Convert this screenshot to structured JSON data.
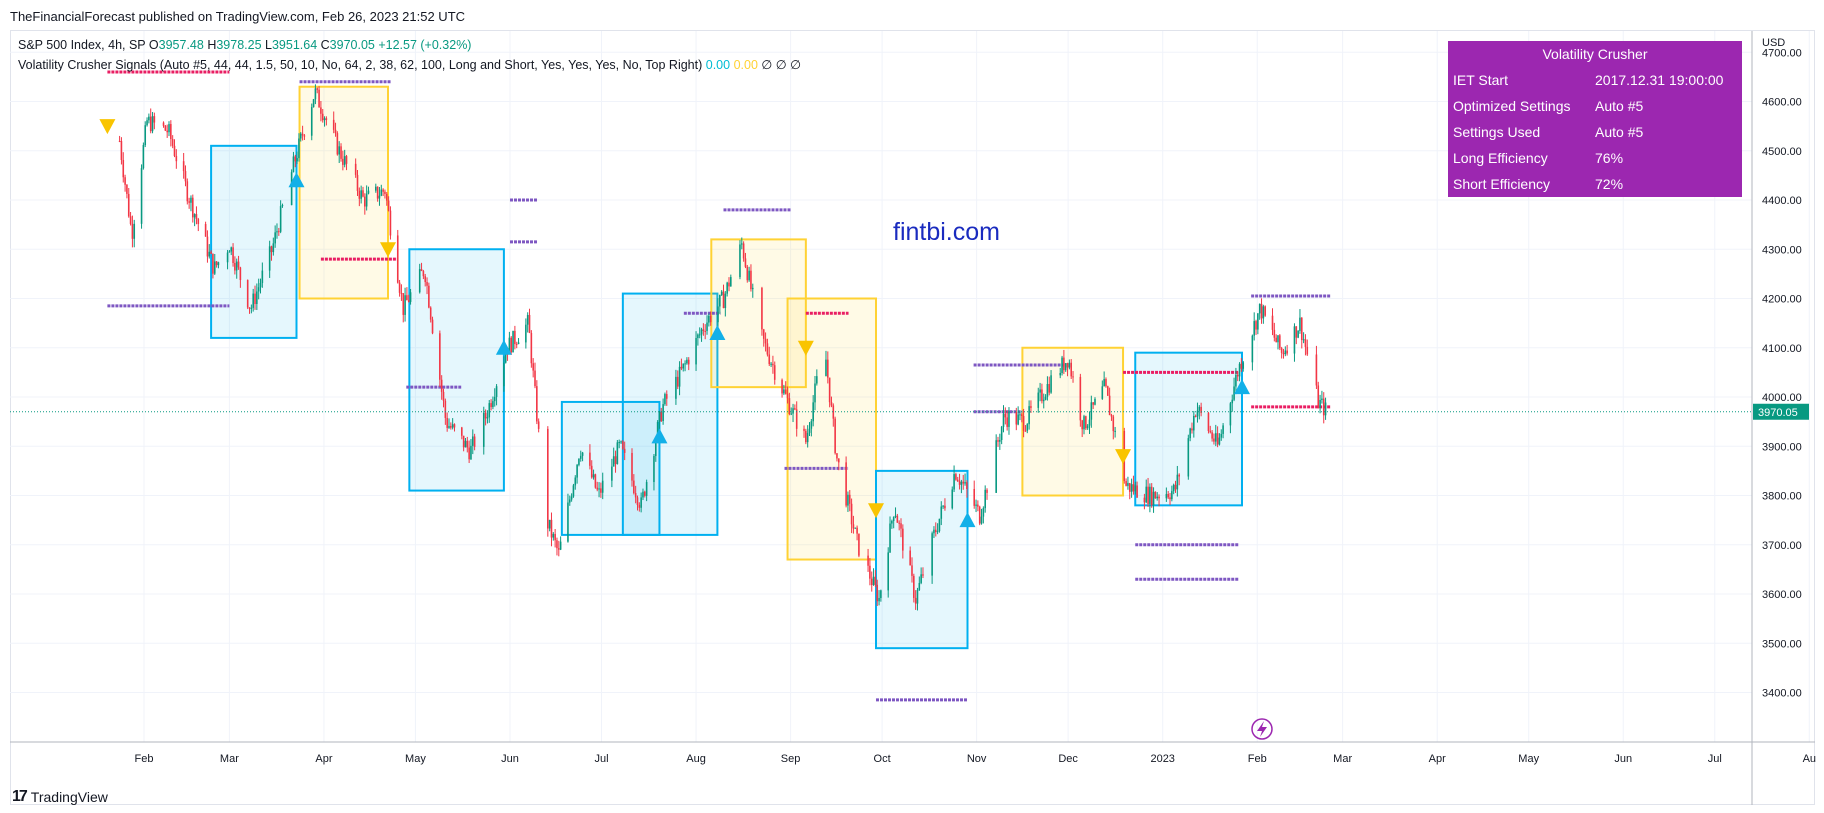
{
  "header": {
    "publisher_line": "TheFinancialForecast published on TradingView.com, Feb 26, 2023 21:52 UTC"
  },
  "legend": {
    "symbol": "S&P 500 Index, 4h, SP",
    "o_label": "O",
    "o_value": "3957.48",
    "h_label": "H",
    "h_value": "3978.25",
    "l_label": "L",
    "l_value": "3951.64",
    "c_label": "C",
    "c_value": "3970.05",
    "change": "+12.57 (+0.32%)",
    "indicator": "Volatility Crusher Signals (Auto #5, 44, 44, 1.5, 50, 10, No, 64, 2, 38, 62, 100, Long and Short, Yes, Yes, Yes, No, Top Right)",
    "ind_v1": "0.00",
    "ind_v2": "0.00",
    "ind_v3": "∅ ∅ ∅"
  },
  "info_table": {
    "title": "Volatility Crusher",
    "rows": [
      {
        "k": "IET Start",
        "v": "2017.12.31 19:00:00"
      },
      {
        "k": "Optimized Settings",
        "v": "Auto #5"
      },
      {
        "k": "Settings Used",
        "v": "Auto #5"
      },
      {
        "k": "Long Efficiency",
        "v": "76%"
      },
      {
        "k": "Short Efficiency",
        "v": "72%"
      }
    ]
  },
  "watermark": "fintbi.com",
  "footer": {
    "logo": "17",
    "brand": "TradingView"
  },
  "colors": {
    "up": "#089981",
    "down": "#f23645",
    "long_box": "#00b0f0",
    "short_box": "#ffd234",
    "purple": "#9c27b0",
    "pink": "#e91e63",
    "violet": "#7e57c2"
  },
  "chart_data": {
    "type": "candlestick",
    "currency_label": "USD",
    "y_ticks": [
      3400,
      3500,
      3600,
      3700,
      3800,
      3900,
      4000,
      4100,
      4200,
      4300,
      4400,
      4500,
      4600,
      4700
    ],
    "x_tick_labels": [
      "Feb",
      "Mar",
      "Apr",
      "May",
      "Jun",
      "Jul",
      "Aug",
      "Sep",
      "Oct",
      "Nov",
      "Dec",
      "2023",
      "Feb",
      "Mar",
      "Apr",
      "May",
      "Jun",
      "Jul",
      "Au"
    ],
    "last_price_label": "3970.05",
    "close_path": [
      [
        "2022-01-24",
        4520
      ],
      [
        "2022-01-28",
        4330
      ],
      [
        "2022-02-02",
        4560
      ],
      [
        "2022-02-09",
        4540
      ],
      [
        "2022-02-15",
        4420
      ],
      [
        "2022-02-24",
        4260
      ],
      [
        "2022-03-01",
        4310
      ],
      [
        "2022-03-08",
        4180
      ],
      [
        "2022-03-15",
        4300
      ],
      [
        "2022-03-22",
        4470
      ],
      [
        "2022-03-29",
        4620
      ],
      [
        "2022-04-06",
        4500
      ],
      [
        "2022-04-14",
        4400
      ],
      [
        "2022-04-21",
        4420
      ],
      [
        "2022-04-27",
        4180
      ],
      [
        "2022-05-04",
        4260
      ],
      [
        "2022-05-11",
        3950
      ],
      [
        "2022-05-19",
        3890
      ],
      [
        "2022-05-24",
        3960
      ],
      [
        "2022-05-31",
        4100
      ],
      [
        "2022-06-07",
        4150
      ],
      [
        "2022-06-13",
        3750
      ],
      [
        "2022-06-17",
        3680
      ],
      [
        "2022-06-24",
        3900
      ],
      [
        "2022-06-30",
        3800
      ],
      [
        "2022-07-07",
        3900
      ],
      [
        "2022-07-14",
        3780
      ],
      [
        "2022-07-21",
        3980
      ],
      [
        "2022-07-28",
        4060
      ],
      [
        "2022-08-04",
        4150
      ],
      [
        "2022-08-10",
        4200
      ],
      [
        "2022-08-16",
        4310
      ],
      [
        "2022-08-22",
        4130
      ],
      [
        "2022-08-29",
        4020
      ],
      [
        "2022-09-06",
        3910
      ],
      [
        "2022-09-12",
        4110
      ],
      [
        "2022-09-16",
        3880
      ],
      [
        "2022-09-23",
        3700
      ],
      [
        "2022-09-30",
        3590
      ],
      [
        "2022-10-05",
        3780
      ],
      [
        "2022-10-12",
        3590
      ],
      [
        "2022-10-18",
        3720
      ],
      [
        "2022-10-25",
        3850
      ],
      [
        "2022-11-02",
        3760
      ],
      [
        "2022-11-10",
        3960
      ],
      [
        "2022-11-17",
        3950
      ],
      [
        "2022-11-25",
        4030
      ],
      [
        "2022-12-01",
        4080
      ],
      [
        "2022-12-06",
        3940
      ],
      [
        "2022-12-13",
        4020
      ],
      [
        "2022-12-20",
        3820
      ],
      [
        "2022-12-28",
        3800
      ],
      [
        "2023-01-05",
        3810
      ],
      [
        "2023-01-12",
        3980
      ],
      [
        "2023-01-19",
        3900
      ],
      [
        "2023-01-26",
        4060
      ],
      [
        "2023-02-02",
        4180
      ],
      [
        "2023-02-09",
        4090
      ],
      [
        "2023-02-15",
        4150
      ],
      [
        "2023-02-21",
        3990
      ],
      [
        "2023-02-24",
        3970
      ]
    ],
    "boxes": [
      {
        "kind": "long",
        "start": "2022-02-23",
        "end": "2022-03-23",
        "low": 4120,
        "high": 4510
      },
      {
        "kind": "short",
        "start": "2022-03-24",
        "end": "2022-04-22",
        "low": 4200,
        "high": 4630
      },
      {
        "kind": "long",
        "start": "2022-04-29",
        "end": "2022-05-30",
        "low": 3810,
        "high": 4300
      },
      {
        "kind": "long",
        "start": "2022-06-18",
        "end": "2022-07-20",
        "low": 3720,
        "high": 3990
      },
      {
        "kind": "long",
        "start": "2022-07-08",
        "end": "2022-08-08",
        "low": 3720,
        "high": 4210
      },
      {
        "kind": "short",
        "start": "2022-08-06",
        "end": "2022-09-06",
        "low": 4020,
        "high": 4320
      },
      {
        "kind": "short",
        "start": "2022-08-31",
        "end": "2022-09-29",
        "low": 3670,
        "high": 4200
      },
      {
        "kind": "long",
        "start": "2022-09-29",
        "end": "2022-10-29",
        "low": 3490,
        "high": 3850
      },
      {
        "kind": "short",
        "start": "2022-11-16",
        "end": "2022-12-19",
        "low": 3800,
        "high": 4100
      },
      {
        "kind": "long",
        "start": "2022-12-23",
        "end": "2023-01-27",
        "low": 3780,
        "high": 4090
      }
    ],
    "markers": [
      {
        "kind": "buy",
        "date": "2022-03-23",
        "price": 4440
      },
      {
        "kind": "buy",
        "date": "2022-05-30",
        "price": 4100
      },
      {
        "kind": "buy",
        "date": "2022-07-20",
        "price": 3920
      },
      {
        "kind": "buy",
        "date": "2022-08-08",
        "price": 4130
      },
      {
        "kind": "buy",
        "date": "2022-10-29",
        "price": 3750
      },
      {
        "kind": "buy",
        "date": "2023-01-27",
        "price": 4020
      },
      {
        "kind": "sell",
        "date": "2022-01-20",
        "price": 4550
      },
      {
        "kind": "sell",
        "date": "2022-04-22",
        "price": 4300
      },
      {
        "kind": "sell",
        "date": "2022-09-06",
        "price": 4100
      },
      {
        "kind": "sell",
        "date": "2022-09-29",
        "price": 3770
      },
      {
        "kind": "sell",
        "date": "2022-12-19",
        "price": 3880
      }
    ],
    "level_lines": [
      {
        "start": "2022-01-20",
        "end": "2022-03-01",
        "price": 4660,
        "color": "pink"
      },
      {
        "start": "2022-01-20",
        "end": "2022-03-01",
        "price": 4185,
        "color": "violet"
      },
      {
        "start": "2022-03-24",
        "end": "2022-04-23",
        "price": 4640,
        "color": "violet"
      },
      {
        "start": "2022-03-31",
        "end": "2022-04-25",
        "price": 4280,
        "color": "pink"
      },
      {
        "start": "2022-06-01",
        "end": "2022-06-10",
        "price": 4400,
        "color": "violet"
      },
      {
        "start": "2022-06-01",
        "end": "2022-06-10",
        "price": 4315,
        "color": "violet"
      },
      {
        "start": "2022-04-28",
        "end": "2022-05-16",
        "price": 4020,
        "color": "violet"
      },
      {
        "start": "2022-07-28",
        "end": "2022-08-09",
        "price": 4170,
        "color": "violet"
      },
      {
        "start": "2022-08-10",
        "end": "2022-09-01",
        "price": 4380,
        "color": "violet"
      },
      {
        "start": "2022-09-06",
        "end": "2022-09-20",
        "price": 4170,
        "color": "pink"
      },
      {
        "start": "2022-08-30",
        "end": "2022-09-20",
        "price": 3855,
        "color": "violet"
      },
      {
        "start": "2022-09-29",
        "end": "2022-10-29",
        "price": 3385,
        "color": "violet"
      },
      {
        "start": "2022-10-31",
        "end": "2022-11-30",
        "price": 4065,
        "color": "violet"
      },
      {
        "start": "2022-10-31",
        "end": "2022-11-16",
        "price": 3970,
        "color": "violet"
      },
      {
        "start": "2022-12-19",
        "end": "2023-01-26",
        "price": 4050,
        "color": "pink"
      },
      {
        "start": "2022-12-23",
        "end": "2023-01-26",
        "price": 3700,
        "color": "violet"
      },
      {
        "start": "2022-12-23",
        "end": "2023-01-26",
        "price": 3630,
        "color": "violet"
      },
      {
        "start": "2023-01-30",
        "end": "2023-02-25",
        "price": 4205,
        "color": "violet"
      },
      {
        "start": "2023-01-30",
        "end": "2023-02-25",
        "price": 3980,
        "color": "pink"
      }
    ]
  }
}
